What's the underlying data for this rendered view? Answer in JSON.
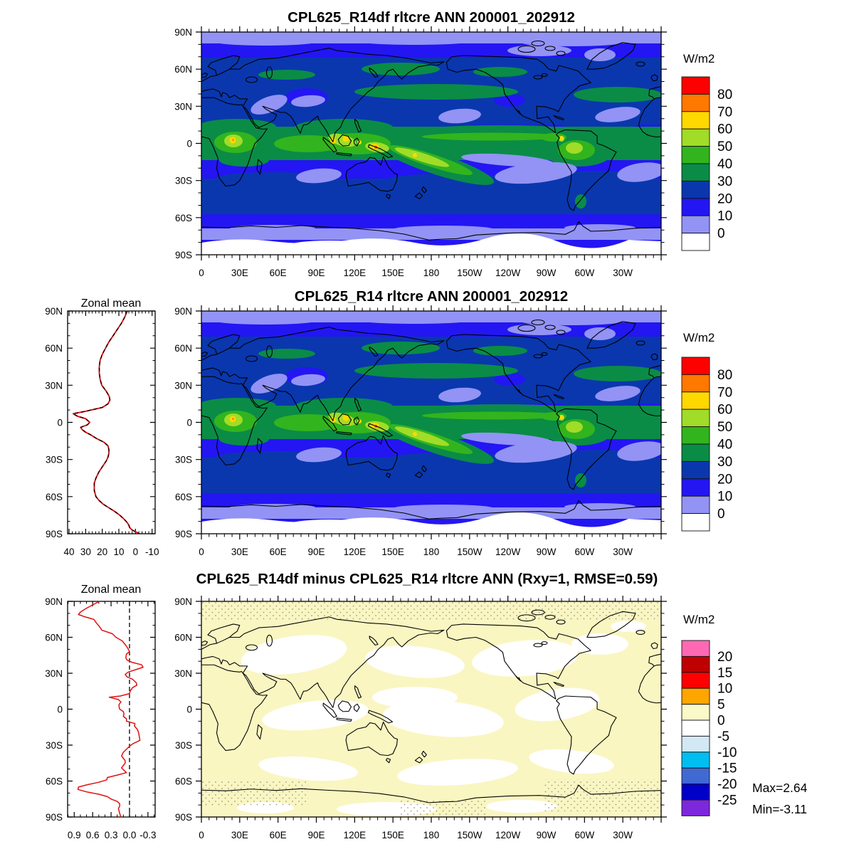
{
  "figure": {
    "background": "#ffffff",
    "variable": "rltcre",
    "season": "ANN",
    "period": "200001_202912"
  },
  "map_axes": {
    "lon_labels": [
      "0",
      "30E",
      "60E",
      "90E",
      "120E",
      "150E",
      "180",
      "150W",
      "120W",
      "90W",
      "60W",
      "30W"
    ],
    "lat_labels": [
      "90N",
      "60N",
      "30N",
      "0",
      "30S",
      "60S",
      "90S"
    ]
  },
  "panels": [
    {
      "title": "CPL625_R14df rltcre ANN 200001_202912",
      "units_label": "W/m2",
      "colorbar": {
        "colors": [
          "#FF0000",
          "#FF7800",
          "#FFD800",
          "#A0DC28",
          "#32B41E",
          "#0A8C46",
          "#0A37AE",
          "#2316F2",
          "#9293F4",
          "#FFFFFF"
        ],
        "labels": [
          "80",
          "70",
          "60",
          "50",
          "40",
          "30",
          "20",
          "10",
          "0"
        ]
      }
    },
    {
      "title": "CPL625_R14 rltcre ANN 200001_202912",
      "units_label": "W/m2",
      "colorbar": {
        "colors": [
          "#FF0000",
          "#FF7800",
          "#FFD800",
          "#A0DC28",
          "#32B41E",
          "#0A8C46",
          "#0A37AE",
          "#2316F2",
          "#9293F4",
          "#FFFFFF"
        ],
        "labels": [
          "80",
          "70",
          "60",
          "50",
          "40",
          "30",
          "20",
          "10",
          "0"
        ]
      },
      "zonal": {
        "title": "Zonal mean",
        "x_tick_labels": [
          "40",
          "30",
          "20",
          "10",
          "0",
          "-10"
        ],
        "x_tick_values": [
          40,
          30,
          20,
          10,
          0,
          -10
        ]
      }
    },
    {
      "title": "CPL625_R14df minus CPL625_R14 rltcre ANN (Rxy=1, RMSE=0.59)",
      "units_label": "W/m2",
      "colorbar": {
        "colors": [
          "#FF69B4",
          "#BE0000",
          "#FF0000",
          "#FFA500",
          "#FAFAC8",
          "#FFFFFF",
          "#D2E8F5",
          "#00BEF0",
          "#4169D2",
          "#0000C8",
          "#7D28DC"
        ],
        "labels": [
          "20",
          "15",
          "10",
          "5",
          "0",
          "-5",
          "-10",
          "-15",
          "-20",
          "-25"
        ]
      },
      "stats": {
        "max_label": "Max=2.64",
        "min_label": "Min=-3.11"
      },
      "zonal": {
        "title": "Zonal mean",
        "x_tick_labels": [
          "0.9",
          "0.6",
          "0.3",
          "0.0",
          "-0.3"
        ],
        "x_tick_values": [
          0.9,
          0.6,
          0.3,
          0.0,
          -0.3
        ]
      }
    }
  ],
  "chart_data": [
    {
      "type": "heatmap",
      "subtype": "filled-contour-map",
      "title": "CPL625_R14df rltcre ANN 200001_202912",
      "xlabel_ticks": [
        "0",
        "30E",
        "60E",
        "90E",
        "120E",
        "150E",
        "180",
        "150W",
        "120W",
        "90W",
        "60W",
        "30W"
      ],
      "ylabel_ticks": [
        "90N",
        "60N",
        "30N",
        "0",
        "30S",
        "60S",
        "90S"
      ],
      "units": "W/m2",
      "levels": [
        0,
        10,
        20,
        30,
        40,
        50,
        60,
        70,
        80
      ],
      "level_colors_low_to_high": [
        "#FFFFFF",
        "#9293F4",
        "#2316F2",
        "#0A37AE",
        "#0A8C46",
        "#32B41E",
        "#A0DC28",
        "#FFD800",
        "#FF7800",
        "#FF0000"
      ],
      "lon_range": [
        0,
        360
      ],
      "lat_range": [
        -90,
        90
      ],
      "notes": "LW cloud radiative effect; maxima 60-80 over Congo, Maritime Continent, ITCZ/SPCZ, Amazon; near 0 over Antarctica and subtropical eastern-ocean stratocumulus regions"
    },
    {
      "type": "heatmap",
      "subtype": "filled-contour-map",
      "title": "CPL625_R14 rltcre ANN 200001_202912",
      "xlabel_ticks": [
        "0",
        "30E",
        "60E",
        "90E",
        "120E",
        "150E",
        "180",
        "150W",
        "120W",
        "90W",
        "60W",
        "30W"
      ],
      "ylabel_ticks": [
        "90N",
        "60N",
        "30N",
        "0",
        "30S",
        "60S",
        "90S"
      ],
      "units": "W/m2",
      "levels": [
        0,
        10,
        20,
        30,
        40,
        50,
        60,
        70,
        80
      ],
      "level_colors_low_to_high": [
        "#FFFFFF",
        "#9293F4",
        "#2316F2",
        "#0A37AE",
        "#0A8C46",
        "#32B41E",
        "#A0DC28",
        "#FFD800",
        "#FF7800",
        "#FF0000"
      ],
      "lon_range": [
        0,
        360
      ],
      "lat_range": [
        -90,
        90
      ],
      "zonal_mean": {
        "type": "line",
        "title": "Zonal mean",
        "x_axis": {
          "label_ticks": [
            40,
            30,
            20,
            10,
            0,
            -10
          ],
          "reversed": true,
          "units": "W/m2"
        },
        "y_axis": {
          "label_ticks": [
            "90N",
            "60N",
            "30N",
            "0",
            "30S",
            "60S",
            "90S"
          ]
        },
        "series": [
          {
            "name": "CPL625_R14df",
            "color": "#E01010",
            "style": "solid"
          },
          {
            "name": "CPL625_R14",
            "color": "#000000",
            "style": "dashed"
          }
        ],
        "points_lat_value": [
          [
            90,
            5
          ],
          [
            85,
            6.5
          ],
          [
            80,
            8.5
          ],
          [
            75,
            11
          ],
          [
            70,
            13.5
          ],
          [
            65,
            16
          ],
          [
            60,
            18
          ],
          [
            55,
            20
          ],
          [
            50,
            21.3
          ],
          [
            45,
            21.8
          ],
          [
            40,
            21.8
          ],
          [
            35,
            21.3
          ],
          [
            30,
            20.3
          ],
          [
            25,
            17.5
          ],
          [
            21,
            15.8
          ],
          [
            18,
            15.4
          ],
          [
            15,
            16.5
          ],
          [
            12,
            20
          ],
          [
            9,
            30
          ],
          [
            7,
            37.5
          ],
          [
            5,
            35
          ],
          [
            3,
            30
          ],
          [
            0,
            27.5
          ],
          [
            -2,
            29
          ],
          [
            -4,
            33
          ],
          [
            -6,
            32
          ],
          [
            -8,
            30
          ],
          [
            -10,
            27
          ],
          [
            -13,
            23.5
          ],
          [
            -16,
            19
          ],
          [
            -19,
            16.5
          ],
          [
            -22,
            16
          ],
          [
            -25,
            16
          ],
          [
            -28,
            16.5
          ],
          [
            -31,
            17.5
          ],
          [
            -35,
            19.5
          ],
          [
            -40,
            22
          ],
          [
            -45,
            23.8
          ],
          [
            -49,
            24.8
          ],
          [
            -55,
            24.8
          ],
          [
            -60,
            23.8
          ],
          [
            -63,
            22
          ],
          [
            -66,
            19.5
          ],
          [
            -69,
            16
          ],
          [
            -72,
            12.5
          ],
          [
            -75,
            9.5
          ],
          [
            -78,
            7
          ],
          [
            -81,
            5
          ],
          [
            -83,
            4
          ],
          [
            -85,
            3.5
          ],
          [
            -87,
            2
          ],
          [
            -90,
            -2.5
          ]
        ]
      }
    },
    {
      "type": "heatmap",
      "subtype": "filled-contour-difference-map",
      "title": "CPL625_R14df minus CPL625_R14 rltcre ANN (Rxy=1, RMSE=0.59)",
      "xlabel_ticks": [
        "0",
        "30E",
        "60E",
        "90E",
        "120E",
        "150E",
        "180",
        "150W",
        "120W",
        "90W",
        "60W",
        "30W"
      ],
      "ylabel_ticks": [
        "90N",
        "60N",
        "30N",
        "0",
        "30S",
        "60S",
        "90S"
      ],
      "units": "W/m2",
      "levels": [
        -25,
        -20,
        -15,
        -10,
        -5,
        0,
        5,
        10,
        15,
        20
      ],
      "level_colors_low_to_high": [
        "#7D28DC",
        "#0000C8",
        "#4169D2",
        "#00BEF0",
        "#D2E8F5",
        "#FFFFFF",
        "#FAFAC8",
        "#FFA500",
        "#FF0000",
        "#BE0000",
        "#FF69B4"
      ],
      "stats": {
        "max": 2.64,
        "min": -3.11,
        "rxy": 1,
        "rmse": 0.59
      },
      "notes": "Differences everywhere between -5 and 5 W/m2: white and pale-yellow shading only, with stippling near the poles",
      "zonal_mean_diff": {
        "type": "line",
        "title": "Zonal mean",
        "x_axis": {
          "label_ticks": [
            0.9,
            0.6,
            0.3,
            0.0,
            -0.3
          ],
          "reversed": true,
          "units": "W/m2"
        },
        "y_axis": {
          "label_ticks": [
            "90N",
            "60N",
            "30N",
            "0",
            "30S",
            "60S",
            "90S"
          ]
        },
        "zero_line": {
          "style": "dashed",
          "color": "#000000"
        },
        "series": [
          {
            "name": "CPL625_R14df minus CPL625_R14",
            "color": "#E01010",
            "style": "solid"
          }
        ],
        "points_lat_value": [
          [
            90,
            0.49
          ],
          [
            87,
            0.6
          ],
          [
            84,
            0.71
          ],
          [
            81,
            0.8
          ],
          [
            79,
            0.83
          ],
          [
            77,
            0.72
          ],
          [
            75,
            0.58
          ],
          [
            72,
            0.54
          ],
          [
            69,
            0.49
          ],
          [
            66,
            0.45
          ],
          [
            63,
            0.28
          ],
          [
            60,
            0.22
          ],
          [
            57,
            0.12
          ],
          [
            54,
            0.07
          ],
          [
            51,
            0.03
          ],
          [
            48,
            0.0
          ],
          [
            46,
            0.05
          ],
          [
            43,
            0.06
          ],
          [
            41,
            0.04
          ],
          [
            39,
            -0.05
          ],
          [
            37,
            -0.2
          ],
          [
            35,
            -0.22
          ],
          [
            33,
            -0.1
          ],
          [
            31,
            0.02
          ],
          [
            29,
            0.07
          ],
          [
            27,
            0.04
          ],
          [
            25,
            -0.05
          ],
          [
            22,
            -0.11
          ],
          [
            20,
            -0.12
          ],
          [
            18,
            -0.05
          ],
          [
            15,
            -0.01
          ],
          [
            13,
            0.0
          ],
          [
            11,
            0.15
          ],
          [
            10,
            0.33
          ],
          [
            8,
            0.18
          ],
          [
            6,
            0.14
          ],
          [
            4,
            0.17
          ],
          [
            2,
            0.17
          ],
          [
            0,
            0.16
          ],
          [
            -2,
            0.1
          ],
          [
            -4,
            0.09
          ],
          [
            -6,
            0.1
          ],
          [
            -8,
            0.05
          ],
          [
            -10,
            0.05
          ],
          [
            -12,
            -0.09
          ],
          [
            -14,
            -0.08
          ],
          [
            -17,
            -0.13
          ],
          [
            -20,
            -0.15
          ],
          [
            -23,
            -0.16
          ],
          [
            -26,
            -0.17
          ],
          [
            -29,
            -0.05
          ],
          [
            -31,
            0.0
          ],
          [
            -33,
            0.04
          ],
          [
            -36,
            0.1
          ],
          [
            -39,
            0.13
          ],
          [
            -41,
            0.1
          ],
          [
            -43,
            0.07
          ],
          [
            -45,
            0.07
          ],
          [
            -47,
            0.1
          ],
          [
            -49,
            0.13
          ],
          [
            -51,
            0.09
          ],
          [
            -53,
            0.05
          ],
          [
            -55,
            0.2
          ],
          [
            -57,
            0.36
          ],
          [
            -59,
            0.37
          ],
          [
            -61,
            0.5
          ],
          [
            -63,
            0.68
          ],
          [
            -65,
            0.83
          ],
          [
            -67,
            0.84
          ],
          [
            -69,
            0.7
          ],
          [
            -71,
            0.5
          ],
          [
            -73,
            0.36
          ],
          [
            -75,
            0.3
          ],
          [
            -77,
            0.2
          ],
          [
            -79,
            0.16
          ],
          [
            -81,
            0.16
          ],
          [
            -83,
            0.18
          ],
          [
            -85,
            0.17
          ],
          [
            -87,
            0.16
          ],
          [
            -90,
            0.14
          ]
        ]
      }
    }
  ]
}
